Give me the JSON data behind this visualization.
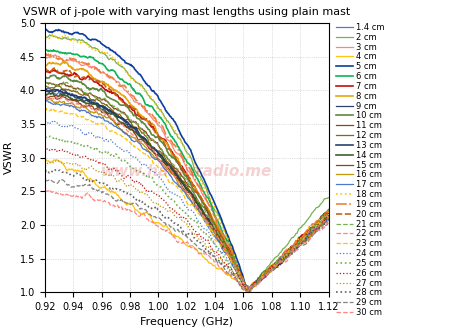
{
  "title": "VSWR of j-pole with varying mast lengths using plain mast",
  "xlabel": "Frequency (GHz)",
  "ylabel": "VSWR",
  "xlim": [
    0.92,
    1.12
  ],
  "ylim": [
    1.0,
    5.0
  ],
  "xticks": [
    0.92,
    0.94,
    0.96,
    0.98,
    1.0,
    1.02,
    1.04,
    1.06,
    1.08,
    1.1,
    1.12
  ],
  "yticks": [
    1.0,
    1.5,
    2.0,
    2.5,
    3.0,
    3.5,
    4.0,
    4.5,
    5.0
  ],
  "watermark": "www.hamuradio.me",
  "legend_labels": [
    "1.4 cm",
    "2 cm",
    "3 cm",
    "4 cm",
    "5 cm",
    "6 cm",
    "7 cm",
    "8 cm",
    "9 cm",
    "10 cm",
    "11 cm",
    "12 cm",
    "13 cm",
    "14 cm",
    "15 cm",
    "16 cm",
    "17 cm",
    "18 cm",
    "19 cm",
    "20 cm",
    "21 cm",
    "22 cm",
    "23 cm",
    "24 cm",
    "25 cm",
    "26 cm",
    "27 cm",
    "28 cm",
    "29 cm",
    "30 cm"
  ],
  "colors": [
    "#4472c4",
    "#70ad47",
    "#ff7f7f",
    "#ffc000",
    "#003399",
    "#00b050",
    "#c00000",
    "#e6a000",
    "#1f3864",
    "#548235",
    "#843c0c",
    "#7f6000",
    "#203864",
    "#375623",
    "#843c0c",
    "#bf8f00",
    "#4472c4",
    "#ffc000",
    "#ed7d31",
    "#c55a11",
    "#70ad47",
    "#ff7f7f",
    "#ffc000",
    "#4472c4",
    "#70ad47",
    "#c00000",
    "#bf8f00",
    "#595959",
    "#7f7f7f",
    "#ff7f7f"
  ],
  "linestyles": [
    "-",
    "-",
    "-",
    "-",
    "-",
    "-",
    "-",
    "-",
    "-",
    "-",
    "-",
    "-",
    "-",
    "-",
    "-",
    "-",
    "-",
    ":",
    "-.",
    "--",
    "--",
    "--",
    "--",
    ":",
    ":",
    ":",
    ":",
    ":",
    "--",
    "--"
  ],
  "linewidths": [
    0.9,
    0.9,
    0.9,
    0.9,
    1.2,
    1.2,
    1.2,
    1.2,
    0.9,
    1.2,
    0.9,
    0.9,
    1.2,
    1.2,
    0.9,
    0.9,
    0.9,
    1.2,
    1.2,
    1.2,
    0.9,
    0.9,
    0.9,
    0.9,
    1.2,
    0.9,
    0.9,
    1.2,
    0.9,
    0.9
  ],
  "title_fontsize": 8,
  "label_fontsize": 8,
  "tick_fontsize": 7,
  "legend_fontsize": 6.0
}
